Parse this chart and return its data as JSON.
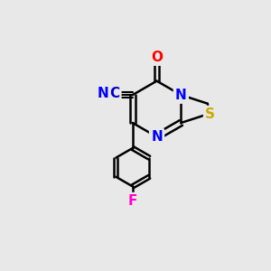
{
  "background_color": "#e8e8e8",
  "bond_color": "#000000",
  "bond_width": 1.8,
  "atom_colors": {
    "N": "#0000ff",
    "O": "#ff0000",
    "S": "#ccaa00",
    "F": "#ff00cc",
    "C": "#000000",
    "CN_C": "#0000cd",
    "CN_N": "#0000ff"
  },
  "font_size_atom": 11
}
